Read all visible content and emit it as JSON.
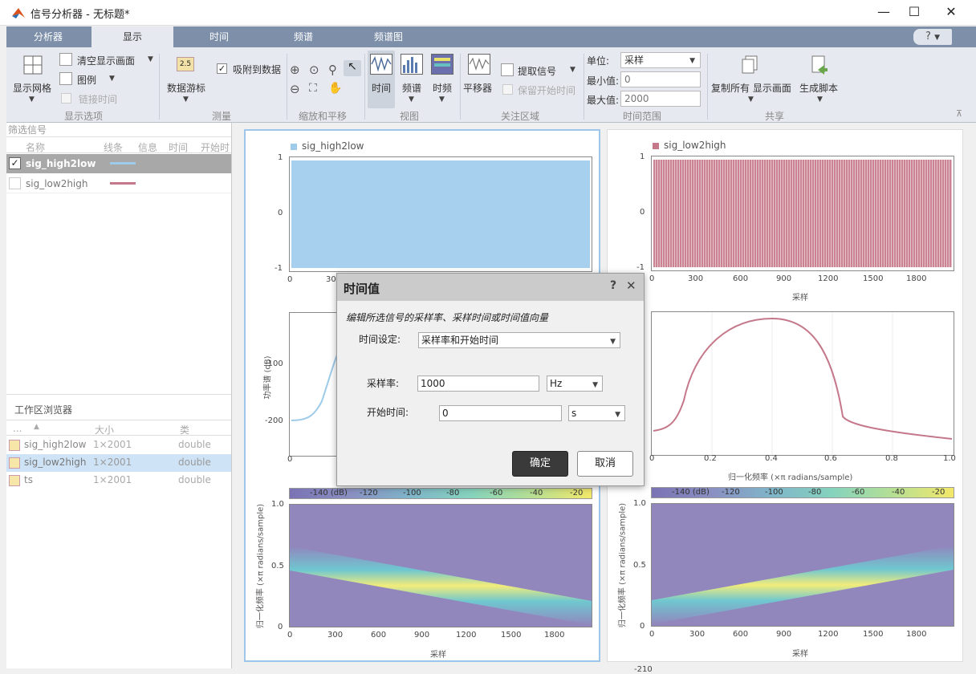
{
  "window": {
    "title": "信号分析器 - 无标题*",
    "min": "—",
    "max": "☐",
    "close": "✕"
  },
  "tabs": [
    "分析器",
    "显示",
    "时间",
    "频谱",
    "频谱图"
  ],
  "help": "?",
  "ribbon": {
    "display_options": {
      "grid": "显示网格",
      "clear": "清空显示画面",
      "legend": "图例",
      "link_time": "链接时间",
      "group": "显示选项"
    },
    "measure": {
      "cursor_icon": "2.5",
      "cursor": "数据游标",
      "snap": "吸附到数据",
      "group": "测量"
    },
    "zoom": {
      "group": "缩放和平移"
    },
    "view": {
      "time": "时间",
      "spectrum": "频谱",
      "timefreq": "时频",
      "group": "视图"
    },
    "roi": {
      "panner": "平移器",
      "extract": "提取信号",
      "keep_start": "保留开始时间",
      "group": "关注区域"
    },
    "timerange": {
      "unit_label": "单位:",
      "unit_value": "采样",
      "min_label": "最小值:",
      "min_value": "0",
      "max_label": "最大值:",
      "max_value": "2000",
      "group": "时间范围"
    },
    "share": {
      "copy": "复制所有 显示画面",
      "script": "生成脚本",
      "group": "共享"
    }
  },
  "filter": {
    "placeholder": "筛选信号",
    "cols": [
      "名称",
      "线条",
      "信息",
      "时间",
      "开始时"
    ],
    "rows": [
      {
        "name": "sig_high2low",
        "color": "#9ecbea",
        "checked": "✓"
      },
      {
        "name": "sig_low2high",
        "color": "#c4788a",
        "checked": ""
      }
    ]
  },
  "workspace": {
    "title": "工作区浏览器",
    "cols": [
      "...",
      "▲",
      "大小",
      "类"
    ],
    "rows": [
      {
        "name": "sig_high2low",
        "size": "1×2001",
        "cls": "double"
      },
      {
        "name": "sig_low2high",
        "size": "1×2001",
        "cls": "double"
      },
      {
        "name": "ts",
        "size": "1×2001",
        "cls": "double"
      }
    ]
  },
  "plots": {
    "left": {
      "legend": "sig_high2low",
      "color": "#9ecbea"
    },
    "right": {
      "legend": "sig_low2high",
      "color": "#c4788a"
    },
    "time_y": [
      "1",
      "0",
      "-1"
    ],
    "time_x": [
      "0",
      "300",
      "600",
      "900",
      "1200",
      "1500",
      "1800"
    ],
    "time_xlabel": "采样",
    "spec_ylabel": "功率谱 (dB)",
    "spec_y": [
      "-100",
      "-200"
    ],
    "spec_x": [
      "0",
      "0.2",
      "0.4",
      "0.6",
      "0.8",
      "1.0"
    ],
    "spec_xlabel": "归一化频率 (×π radians/sample)",
    "cbar": [
      "-140 (dB)",
      "-120",
      "-100",
      "-80",
      "-60",
      "-40",
      "-20"
    ],
    "sg_y": [
      "1.0",
      "0.5",
      "0"
    ],
    "sg_ylabel": "归一化频率 (×π radians/sample)",
    "sg_xlabel": "采样"
  },
  "dialog": {
    "title": "时间值",
    "help": "?",
    "close": "✕",
    "desc": "编辑所选信号的采样率、采样时间或时间值向量",
    "setting_label": "时间设定:",
    "setting_value": "采样率和开始时间",
    "rate_label": "采样率:",
    "rate_value": "1000",
    "rate_unit": "Hz",
    "start_label": "开始时间:",
    "start_value": "0",
    "start_unit": "s",
    "ok": "确定",
    "cancel": "取消"
  },
  "bottom_tick": "-210"
}
